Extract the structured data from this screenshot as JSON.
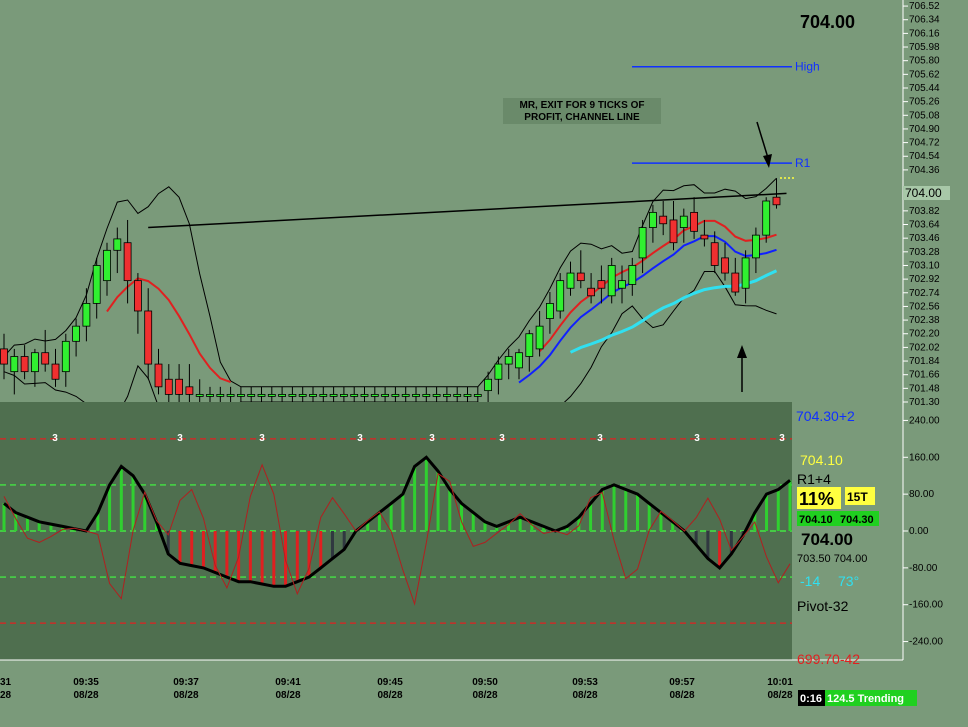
{
  "chart_data": {
    "type": "candlestick",
    "price_panel": {
      "last_price": "704.00",
      "axis_ticks": [
        "706.52",
        "706.34",
        "706.16",
        "705.98",
        "705.80",
        "705.62",
        "705.44",
        "705.26",
        "705.08",
        "704.90",
        "704.72",
        "704.54",
        "704.36",
        "704.00",
        "703.82",
        "703.64",
        "703.46",
        "703.28",
        "703.10",
        "702.92",
        "702.74",
        "702.56",
        "702.38",
        "702.20",
        "702.02",
        "701.84",
        "701.66",
        "701.48",
        "701.30"
      ],
      "ylim": [
        701.3,
        706.6
      ],
      "levels": [
        {
          "name": "High",
          "price": 705.72,
          "color": "#1030ff"
        },
        {
          "name": "R1",
          "price": 704.45,
          "color": "#1030ff"
        }
      ],
      "annotation_lines": [
        "MR, EXIT FOR 9 TICKS OF",
        "PROFIT, CHANNEL LINE"
      ],
      "price_tag": "704.00",
      "candles": [
        {
          "i": 0,
          "o": 702.0,
          "h": 702.2,
          "l": 701.6,
          "c": 701.8
        },
        {
          "i": 1,
          "o": 701.7,
          "h": 702.0,
          "l": 701.4,
          "c": 701.9
        },
        {
          "i": 2,
          "o": 701.9,
          "h": 702.05,
          "l": 701.6,
          "c": 701.7
        },
        {
          "i": 3,
          "o": 701.7,
          "h": 702.0,
          "l": 701.5,
          "c": 701.95
        },
        {
          "i": 4,
          "o": 701.95,
          "h": 702.25,
          "l": 701.7,
          "c": 701.8
        },
        {
          "i": 5,
          "o": 701.8,
          "h": 702.0,
          "l": 701.5,
          "c": 701.6
        },
        {
          "i": 6,
          "o": 701.7,
          "h": 702.2,
          "l": 701.5,
          "c": 702.1
        },
        {
          "i": 7,
          "o": 702.1,
          "h": 702.4,
          "l": 701.9,
          "c": 702.3
        },
        {
          "i": 8,
          "o": 702.3,
          "h": 702.8,
          "l": 702.1,
          "c": 702.6
        },
        {
          "i": 9,
          "o": 702.6,
          "h": 703.2,
          "l": 702.4,
          "c": 703.1
        },
        {
          "i": 10,
          "o": 702.9,
          "h": 703.4,
          "l": 702.7,
          "c": 703.3
        },
        {
          "i": 11,
          "o": 703.3,
          "h": 703.6,
          "l": 703.0,
          "c": 703.45
        },
        {
          "i": 12,
          "o": 703.4,
          "h": 703.7,
          "l": 702.6,
          "c": 702.9
        },
        {
          "i": 13,
          "o": 702.9,
          "h": 703.0,
          "l": 702.2,
          "c": 702.5
        },
        {
          "i": 14,
          "o": 702.5,
          "h": 702.8,
          "l": 701.6,
          "c": 701.8
        },
        {
          "i": 15,
          "o": 701.8,
          "h": 702.0,
          "l": 701.4,
          "c": 701.5
        },
        {
          "i": 16,
          "o": 701.6,
          "h": 701.8,
          "l": 701.3,
          "c": 701.4
        },
        {
          "i": 17,
          "o": 701.6,
          "h": 701.8,
          "l": 701.3,
          "c": 701.4
        },
        {
          "i": 18,
          "o": 701.5,
          "h": 701.8,
          "l": 701.3,
          "c": 701.4
        },
        {
          "i": 19,
          "o": 701.4,
          "h": 701.6,
          "l": 701.3,
          "c": 701.4
        },
        {
          "i": 20,
          "o": 701.4,
          "h": 701.5,
          "l": 701.3,
          "c": 701.4
        },
        {
          "i": 21,
          "o": 701.4,
          "h": 701.5,
          "l": 701.3,
          "c": 701.4
        },
        {
          "i": 22,
          "o": 701.4,
          "h": 701.5,
          "l": 701.3,
          "c": 701.4
        },
        {
          "i": 23,
          "o": 701.4,
          "h": 701.5,
          "l": 701.3,
          "c": 701.4
        },
        {
          "i": 24,
          "o": 701.4,
          "h": 701.5,
          "l": 701.3,
          "c": 701.4
        },
        {
          "i": 25,
          "o": 701.4,
          "h": 701.5,
          "l": 701.3,
          "c": 701.4
        },
        {
          "i": 26,
          "o": 701.4,
          "h": 701.5,
          "l": 701.3,
          "c": 701.4
        },
        {
          "i": 27,
          "o": 701.4,
          "h": 701.5,
          "l": 701.3,
          "c": 701.4
        },
        {
          "i": 28,
          "o": 701.4,
          "h": 701.5,
          "l": 701.3,
          "c": 701.4
        },
        {
          "i": 29,
          "o": 701.4,
          "h": 701.5,
          "l": 701.3,
          "c": 701.4
        },
        {
          "i": 30,
          "o": 701.4,
          "h": 701.5,
          "l": 701.3,
          "c": 701.4
        },
        {
          "i": 31,
          "o": 701.4,
          "h": 701.5,
          "l": 701.3,
          "c": 701.4
        },
        {
          "i": 32,
          "o": 701.4,
          "h": 701.5,
          "l": 701.3,
          "c": 701.4
        },
        {
          "i": 33,
          "o": 701.4,
          "h": 701.5,
          "l": 701.3,
          "c": 701.4
        },
        {
          "i": 34,
          "o": 701.4,
          "h": 701.5,
          "l": 701.3,
          "c": 701.4
        },
        {
          "i": 35,
          "o": 701.4,
          "h": 701.5,
          "l": 701.3,
          "c": 701.4
        },
        {
          "i": 36,
          "o": 701.4,
          "h": 701.5,
          "l": 701.3,
          "c": 701.4
        },
        {
          "i": 37,
          "o": 701.4,
          "h": 701.5,
          "l": 701.3,
          "c": 701.4
        },
        {
          "i": 38,
          "o": 701.4,
          "h": 701.5,
          "l": 701.3,
          "c": 701.4
        },
        {
          "i": 39,
          "o": 701.4,
          "h": 701.5,
          "l": 701.3,
          "c": 701.4
        },
        {
          "i": 40,
          "o": 701.4,
          "h": 701.5,
          "l": 701.3,
          "c": 701.4
        },
        {
          "i": 41,
          "o": 701.4,
          "h": 701.5,
          "l": 701.3,
          "c": 701.4
        },
        {
          "i": 42,
          "o": 701.4,
          "h": 701.5,
          "l": 701.3,
          "c": 701.4
        },
        {
          "i": 43,
          "o": 701.4,
          "h": 701.5,
          "l": 701.3,
          "c": 701.4
        },
        {
          "i": 44,
          "o": 701.4,
          "h": 701.5,
          "l": 701.3,
          "c": 701.4
        },
        {
          "i": 45,
          "o": 701.4,
          "h": 701.5,
          "l": 701.3,
          "c": 701.4
        },
        {
          "i": 46,
          "o": 701.4,
          "h": 701.5,
          "l": 701.3,
          "c": 701.4
        },
        {
          "i": 47,
          "o": 701.45,
          "h": 701.7,
          "l": 701.3,
          "c": 701.6
        },
        {
          "i": 48,
          "o": 701.6,
          "h": 701.9,
          "l": 701.4,
          "c": 701.8
        },
        {
          "i": 49,
          "o": 701.8,
          "h": 702.0,
          "l": 701.6,
          "c": 701.9
        },
        {
          "i": 50,
          "o": 701.75,
          "h": 702.0,
          "l": 701.6,
          "c": 701.95
        },
        {
          "i": 51,
          "o": 701.9,
          "h": 702.25,
          "l": 701.7,
          "c": 702.2
        },
        {
          "i": 52,
          "o": 702.0,
          "h": 702.5,
          "l": 701.9,
          "c": 702.3
        },
        {
          "i": 53,
          "o": 702.4,
          "h": 702.75,
          "l": 702.2,
          "c": 702.6
        },
        {
          "i": 54,
          "o": 702.5,
          "h": 703.0,
          "l": 702.4,
          "c": 702.9
        },
        {
          "i": 55,
          "o": 702.8,
          "h": 703.15,
          "l": 702.7,
          "c": 703.0
        },
        {
          "i": 56,
          "o": 703.0,
          "h": 703.3,
          "l": 702.8,
          "c": 702.9
        },
        {
          "i": 57,
          "o": 702.8,
          "h": 703.0,
          "l": 702.6,
          "c": 702.7
        },
        {
          "i": 58,
          "o": 702.9,
          "h": 703.1,
          "l": 702.6,
          "c": 702.8
        },
        {
          "i": 59,
          "o": 702.7,
          "h": 703.2,
          "l": 702.6,
          "c": 703.1
        },
        {
          "i": 60,
          "o": 702.8,
          "h": 703.1,
          "l": 702.6,
          "c": 702.9
        },
        {
          "i": 61,
          "o": 702.85,
          "h": 703.2,
          "l": 702.7,
          "c": 703.1
        },
        {
          "i": 62,
          "o": 703.2,
          "h": 703.7,
          "l": 703.0,
          "c": 703.6
        },
        {
          "i": 63,
          "o": 703.6,
          "h": 703.9,
          "l": 703.4,
          "c": 703.8
        },
        {
          "i": 64,
          "o": 703.75,
          "h": 703.95,
          "l": 703.5,
          "c": 703.65
        },
        {
          "i": 65,
          "o": 703.7,
          "h": 703.95,
          "l": 703.3,
          "c": 703.4
        },
        {
          "i": 66,
          "o": 703.6,
          "h": 703.85,
          "l": 703.4,
          "c": 703.75
        },
        {
          "i": 67,
          "o": 703.8,
          "h": 704.0,
          "l": 703.45,
          "c": 703.55
        },
        {
          "i": 68,
          "o": 703.5,
          "h": 703.7,
          "l": 703.35,
          "c": 703.45
        },
        {
          "i": 69,
          "o": 703.4,
          "h": 703.55,
          "l": 703.0,
          "c": 703.1
        },
        {
          "i": 70,
          "o": 703.2,
          "h": 703.4,
          "l": 702.9,
          "c": 703.0
        },
        {
          "i": 71,
          "o": 703.0,
          "h": 703.2,
          "l": 702.7,
          "c": 702.75
        },
        {
          "i": 72,
          "o": 702.8,
          "h": 703.3,
          "l": 702.6,
          "c": 703.2
        },
        {
          "i": 73,
          "o": 703.2,
          "h": 703.6,
          "l": 703.0,
          "c": 703.5
        },
        {
          "i": 74,
          "o": 703.5,
          "h": 704.0,
          "l": 703.4,
          "c": 703.95
        },
        {
          "i": 75,
          "o": 704.0,
          "h": 704.25,
          "l": 703.85,
          "c": 703.9
        }
      ]
    },
    "oscillator_panel": {
      "axis_ticks": [
        "240.00",
        "160.00",
        "80.00",
        "0.00",
        "-80.00",
        "-160.00",
        "-240.00"
      ],
      "ylim": [
        -280,
        280
      ],
      "level_lines": [
        200,
        100,
        0,
        -100,
        -200
      ],
      "top_labels": [
        "3",
        "3",
        "3",
        "3",
        "3",
        "3",
        "3",
        "3",
        "3",
        "3",
        "3"
      ],
      "side_labels": {
        "pivot_plus": "704.30+2",
        "price_1": "704.10",
        "r1": "R1+4",
        "pct": "11%",
        "ticks": "15T",
        "box_left": "704.10",
        "box_right": "704.30",
        "big_price": "704.00",
        "range": "703.50 704.00",
        "osc_value": "-14",
        "angle": "73°",
        "pivot": "Pivot-32",
        "low": "699.70-42"
      },
      "status_time": "0:16",
      "status_text": "124.5 Trending",
      "cci": [
        60,
        40,
        30,
        20,
        15,
        10,
        5,
        0,
        40,
        100,
        140,
        120,
        80,
        20,
        -50,
        -70,
        -75,
        -80,
        -90,
        -100,
        -110,
        -110,
        -115,
        -120,
        -120,
        -110,
        -100,
        -80,
        -60,
        -40,
        0,
        20,
        40,
        60,
        80,
        140,
        160,
        130,
        90,
        60,
        40,
        20,
        10,
        20,
        30,
        20,
        10,
        0,
        10,
        30,
        60,
        90,
        100,
        90,
        80,
        60,
        40,
        20,
        0,
        -30,
        -60,
        -80,
        -50,
        -10,
        40,
        80,
        90,
        110
      ]
    },
    "x_ticks": [
      {
        "time": "31",
        "date": "28"
      },
      {
        "time": "09:35",
        "date": "08/28"
      },
      {
        "time": "09:37",
        "date": "08/28"
      },
      {
        "time": "09:41",
        "date": "08/28"
      },
      {
        "time": "09:45",
        "date": "08/28"
      },
      {
        "time": "09:50",
        "date": "08/28"
      },
      {
        "time": "09:53",
        "date": "08/28"
      },
      {
        "time": "09:57",
        "date": "08/28"
      },
      {
        "time": "10:01",
        "date": "08/28"
      }
    ]
  }
}
